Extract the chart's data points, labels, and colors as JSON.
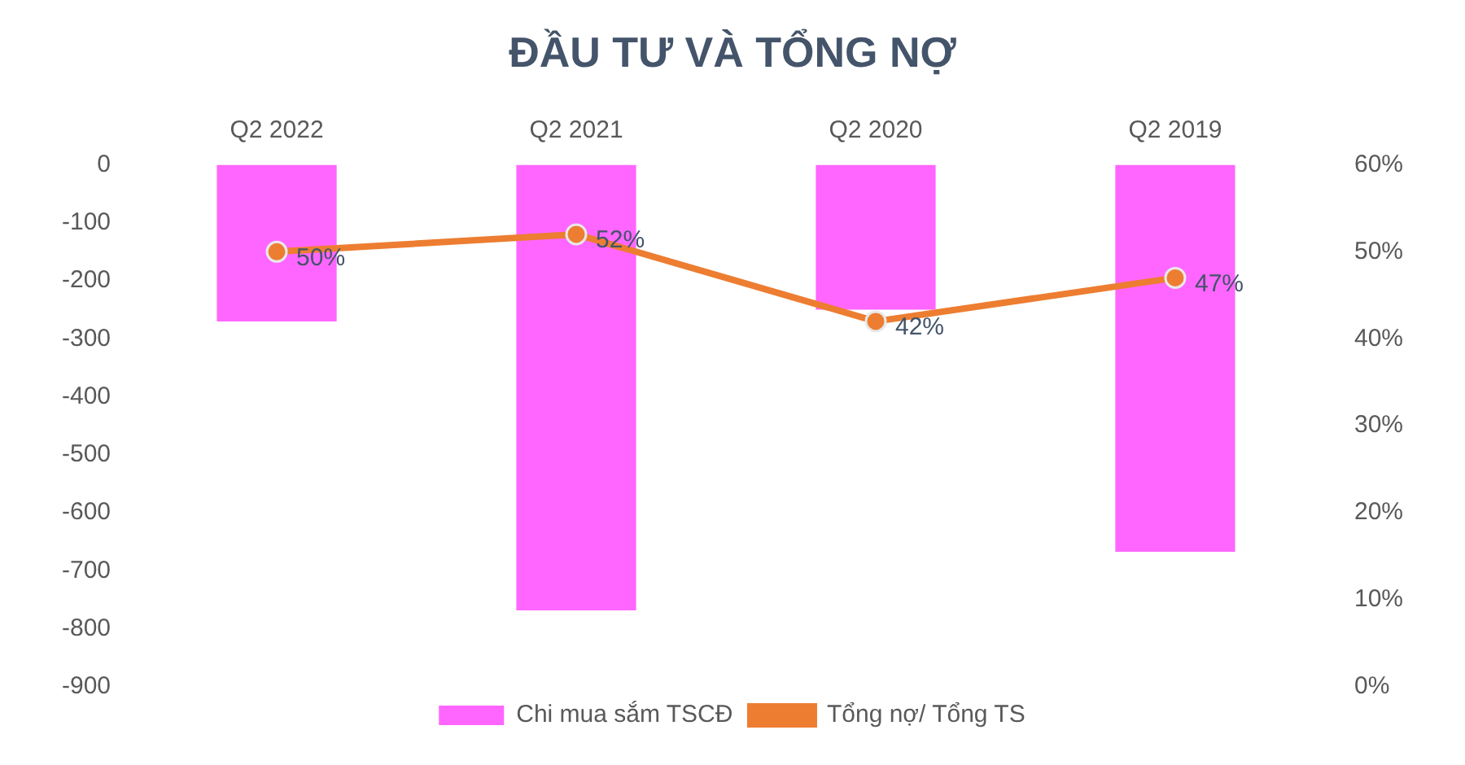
{
  "chart_data": {
    "type": "bar",
    "title": "ĐẦU TƯ VÀ TỔNG NỢ",
    "categories": [
      "Q2 2022",
      "Q2 2021",
      "Q2 2020",
      "Q2 2019"
    ],
    "series": [
      {
        "name": "Chi mua sắm TSCĐ",
        "color": "#ff66ff",
        "values": [
          -270,
          -768,
          -250,
          -667
        ]
      },
      {
        "name": "Tổng nợ/ Tổng TS",
        "type": "line",
        "axis": "y2",
        "color": "#ed7d31",
        "values": [
          50,
          52,
          42,
          47
        ],
        "value_labels": [
          "50%",
          "52%",
          "42%",
          "47%"
        ]
      }
    ],
    "ylim": [
      -900,
      0
    ],
    "yticks": [
      -900,
      -800,
      -700,
      -600,
      -500,
      -400,
      -300,
      -200,
      -100,
      0
    ],
    "y2lim": [
      0,
      60
    ],
    "y2ticks": [
      {
        "value": 0,
        "label": "0%"
      },
      {
        "value": 10,
        "label": "10%"
      },
      {
        "value": 20,
        "label": "20%"
      },
      {
        "value": 30,
        "label": "30%"
      },
      {
        "value": 40,
        "label": "40%"
      },
      {
        "value": 50,
        "label": "50%"
      },
      {
        "value": 60,
        "label": "60%"
      }
    ],
    "grid": false,
    "legend": "bottom",
    "marker": "circle",
    "line_style": "solid"
  }
}
